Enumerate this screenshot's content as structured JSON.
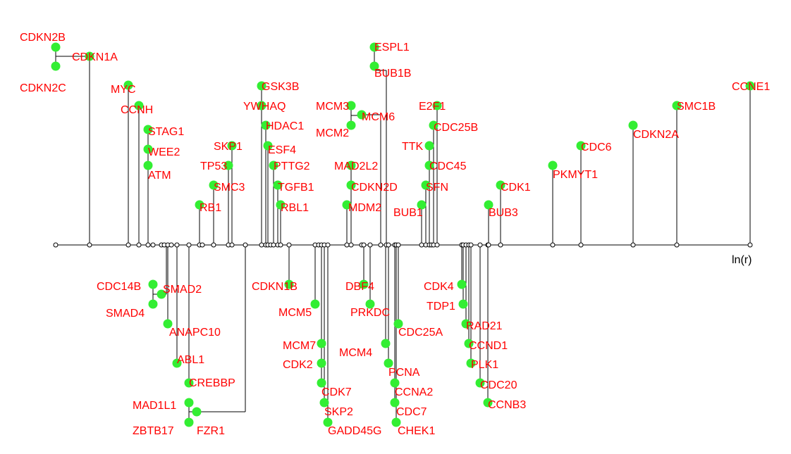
{
  "colors": {
    "label": "#ff0000",
    "node": "#33ee33",
    "line": "#000000",
    "background": "#ffffff"
  },
  "axis": {
    "label": "ln(r)"
  },
  "genes_above": [
    {
      "name": "CDKN2B"
    },
    {
      "name": "CDKN1A"
    },
    {
      "name": "CDKN2C"
    },
    {
      "name": "MYC"
    },
    {
      "name": "CCNH"
    },
    {
      "name": "STAG1"
    },
    {
      "name": "WEE2"
    },
    {
      "name": "ATM"
    },
    {
      "name": "RB1"
    },
    {
      "name": "SMC3"
    },
    {
      "name": "TP53"
    },
    {
      "name": "SKP1"
    },
    {
      "name": "GSK3B"
    },
    {
      "name": "YWHAQ"
    },
    {
      "name": "HDAC1"
    },
    {
      "name": "ESF4"
    },
    {
      "name": "PTTG2"
    },
    {
      "name": "TGFB1"
    },
    {
      "name": "RBL1"
    },
    {
      "name": "MCM3"
    },
    {
      "name": "MCM6"
    },
    {
      "name": "MCM2"
    },
    {
      "name": "ESPL1"
    },
    {
      "name": "BUB1B"
    },
    {
      "name": "MAD2L2"
    },
    {
      "name": "CDKN2D"
    },
    {
      "name": "MDM2"
    },
    {
      "name": "E2F1"
    },
    {
      "name": "CDC25B"
    },
    {
      "name": "TTK"
    },
    {
      "name": "CDC45"
    },
    {
      "name": "SFN"
    },
    {
      "name": "BUB1"
    },
    {
      "name": "CDK1"
    },
    {
      "name": "BUB3"
    },
    {
      "name": "PKMYT1"
    },
    {
      "name": "CDC6"
    },
    {
      "name": "CDKN2A"
    },
    {
      "name": "SMC1B"
    },
    {
      "name": "CCNE1"
    }
  ],
  "genes_below": [
    {
      "name": "CDC14B"
    },
    {
      "name": "SMAD2"
    },
    {
      "name": "SMAD4"
    },
    {
      "name": "ANAPC10"
    },
    {
      "name": "ABL1"
    },
    {
      "name": "CREBBP"
    },
    {
      "name": "MAD1L1"
    },
    {
      "name": "ZBTB17"
    },
    {
      "name": "FZR1"
    },
    {
      "name": "CDKN1B"
    },
    {
      "name": "MCM5"
    },
    {
      "name": "MCM7"
    },
    {
      "name": "CDK2"
    },
    {
      "name": "CDK7"
    },
    {
      "name": "SKP2"
    },
    {
      "name": "GADD45G"
    },
    {
      "name": "DBF4"
    },
    {
      "name": "PRKDC"
    },
    {
      "name": "CDC25A"
    },
    {
      "name": "MCM4"
    },
    {
      "name": "PCNA"
    },
    {
      "name": "CCNA2"
    },
    {
      "name": "CDC7"
    },
    {
      "name": "CHEK1"
    },
    {
      "name": "CDK4"
    },
    {
      "name": "TDP1"
    },
    {
      "name": "RAD21"
    },
    {
      "name": "CCND1"
    },
    {
      "name": "PLK1"
    },
    {
      "name": "CDC20"
    },
    {
      "name": "CCNB3"
    }
  ]
}
